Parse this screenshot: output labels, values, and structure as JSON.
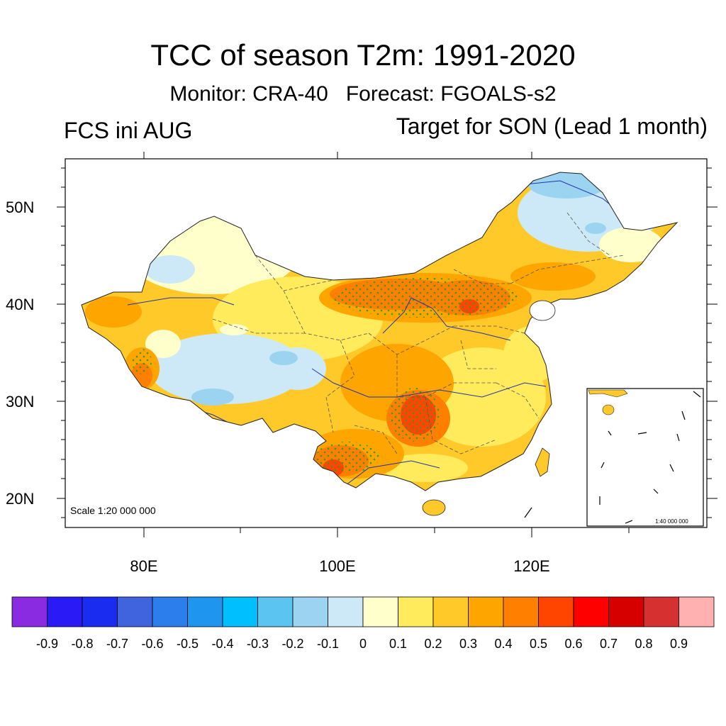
{
  "title": "TCC of season T2m: 1991-2020",
  "subtitle": "Monitor: CRA-40   Forecast: FGOALS-s2",
  "left_label": "FCS ini AUG",
  "right_label": "Target for SON (Lead 1 month)",
  "map": {
    "lat_ticks": [
      "50N",
      "40N",
      "30N",
      "20N"
    ],
    "lon_ticks": [
      "80E",
      "100E",
      "120E"
    ],
    "scale_main": "Scale 1:20 000 000",
    "scale_inset": "1:40 000 000"
  },
  "colorbar": {
    "labels": [
      "-0.9",
      "-0.8",
      "-0.7",
      "-0.6",
      "-0.5",
      "-0.4",
      "-0.3",
      "-0.2",
      "-0.1",
      "0",
      "0.1",
      "0.2",
      "0.3",
      "0.4",
      "0.5",
      "0.6",
      "0.7",
      "0.8",
      "0.9"
    ],
    "colors": [
      "#8A2BE2",
      "#2A1AF5",
      "#1A2CF0",
      "#3F64DE",
      "#2B7EEB",
      "#1E96F0",
      "#00BFFF",
      "#5CC4F0",
      "#9BD3F0",
      "#CDE9F7",
      "#FFFFCC",
      "#FFEB5C",
      "#FFC929",
      "#FFA500",
      "#FF7F00",
      "#FF4500",
      "#FF0000",
      "#D70000",
      "#D73030",
      "#FFB0B0"
    ]
  },
  "palette": {
    "light_blue": "#CDE9F7",
    "blue": "#9BD3F0",
    "light_yellow": "#FFFFCC",
    "yellow": "#FFEB5C",
    "gold": "#FFC929",
    "orange": "#FFA500",
    "dark_orange": "#FF7F00",
    "red_orange": "#FF4500",
    "stipple": "#2ca02c"
  }
}
